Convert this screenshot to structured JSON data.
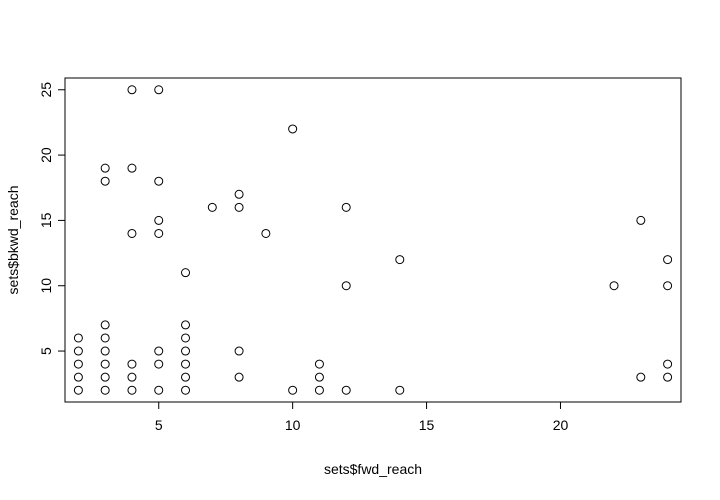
{
  "chart_data": {
    "type": "scatter",
    "title": "",
    "xlabel": "sets$fwd_reach",
    "ylabel": "sets$bkwd_reach",
    "xlim": [
      1.5,
      24.5
    ],
    "ylim": [
      1.1,
      25.9
    ],
    "xticks": [
      5,
      10,
      15,
      20
    ],
    "yticks": [
      5,
      10,
      15,
      20,
      25
    ],
    "grid": false,
    "marker": "open-circle",
    "color": "#000000",
    "points": [
      [
        2,
        2
      ],
      [
        2,
        3
      ],
      [
        2,
        4
      ],
      [
        2,
        5
      ],
      [
        2,
        6
      ],
      [
        3,
        2
      ],
      [
        3,
        3
      ],
      [
        3,
        4
      ],
      [
        3,
        5
      ],
      [
        3,
        6
      ],
      [
        3,
        7
      ],
      [
        3,
        18
      ],
      [
        3,
        19
      ],
      [
        4,
        2
      ],
      [
        4,
        3
      ],
      [
        4,
        4
      ],
      [
        4,
        14
      ],
      [
        4,
        19
      ],
      [
        4,
        25
      ],
      [
        5,
        2
      ],
      [
        5,
        4
      ],
      [
        5,
        5
      ],
      [
        5,
        14
      ],
      [
        5,
        15
      ],
      [
        5,
        18
      ],
      [
        5,
        25
      ],
      [
        6,
        2
      ],
      [
        6,
        3
      ],
      [
        6,
        4
      ],
      [
        6,
        5
      ],
      [
        6,
        6
      ],
      [
        6,
        7
      ],
      [
        6,
        11
      ],
      [
        7,
        16
      ],
      [
        8,
        3
      ],
      [
        8,
        5
      ],
      [
        8,
        16
      ],
      [
        8,
        17
      ],
      [
        9,
        14
      ],
      [
        10,
        2
      ],
      [
        10,
        22
      ],
      [
        11,
        2
      ],
      [
        11,
        3
      ],
      [
        11,
        4
      ],
      [
        12,
        2
      ],
      [
        12,
        10
      ],
      [
        12,
        16
      ],
      [
        14,
        2
      ],
      [
        14,
        12
      ],
      [
        22,
        10
      ],
      [
        23,
        3
      ],
      [
        23,
        15
      ],
      [
        24,
        3
      ],
      [
        24,
        4
      ],
      [
        24,
        10
      ],
      [
        24,
        12
      ]
    ]
  }
}
